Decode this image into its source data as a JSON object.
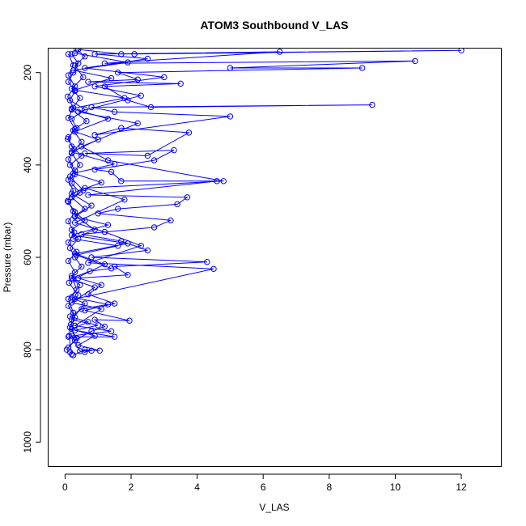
{
  "chart_data": {
    "type": "line",
    "title": "ATOM3 Southbound V_LAS",
    "xlabel": "V_LAS",
    "ylabel": "Pressure (mbar)",
    "xlim": [
      -0.5,
      13.2
    ],
    "ylim": [
      1052,
      148
    ],
    "y_reversed": true,
    "x_ticks": [
      0,
      2,
      4,
      6,
      8,
      10,
      12
    ],
    "y_ticks": [
      200,
      400,
      600,
      800,
      1000
    ],
    "grid": false,
    "legend": "none",
    "color": "#0000ff",
    "marker": "open-circle",
    "series": [
      {
        "values": [
          {
            "x": 0.15,
            "y": 805
          },
          {
            "x": 0.2,
            "y": 810
          },
          {
            "x": 0.12,
            "y": 770
          },
          {
            "x": 0.18,
            "y": 745
          },
          {
            "x": 0.25,
            "y": 720
          },
          {
            "x": 0.1,
            "y": 690
          },
          {
            "x": 0.35,
            "y": 670
          },
          {
            "x": 0.2,
            "y": 640
          },
          {
            "x": 0.5,
            "y": 620
          },
          {
            "x": 0.3,
            "y": 600
          },
          {
            "x": 0.15,
            "y": 580
          },
          {
            "x": 0.4,
            "y": 560
          },
          {
            "x": 0.2,
            "y": 540
          },
          {
            "x": 0.6,
            "y": 520
          },
          {
            "x": 0.25,
            "y": 500
          },
          {
            "x": 0.1,
            "y": 480
          },
          {
            "x": 0.45,
            "y": 460
          },
          {
            "x": 0.2,
            "y": 440
          },
          {
            "x": 0.3,
            "y": 420
          },
          {
            "x": 0.15,
            "y": 400
          },
          {
            "x": 0.5,
            "y": 380
          },
          {
            "x": 0.2,
            "y": 360
          },
          {
            "x": 0.1,
            "y": 340
          },
          {
            "x": 0.35,
            "y": 320
          },
          {
            "x": 0.2,
            "y": 300
          },
          {
            "x": 0.6,
            "y": 280
          },
          {
            "x": 0.15,
            "y": 260
          },
          {
            "x": 0.3,
            "y": 240
          },
          {
            "x": 0.1,
            "y": 220
          },
          {
            "x": 0.25,
            "y": 200
          },
          {
            "x": 0.4,
            "y": 180
          },
          {
            "x": 0.2,
            "y": 160
          }
        ]
      },
      {
        "values": [
          {
            "x": 0.05,
            "y": 800
          },
          {
            "x": 0.3,
            "y": 780
          },
          {
            "x": 0.8,
            "y": 760
          },
          {
            "x": 1.2,
            "y": 750
          },
          {
            "x": 0.9,
            "y": 735
          },
          {
            "x": 1.95,
            "y": 737
          },
          {
            "x": 0.6,
            "y": 715
          },
          {
            "x": 1.5,
            "y": 700
          },
          {
            "x": 0.7,
            "y": 680
          },
          {
            "x": 1.1,
            "y": 660
          },
          {
            "x": 0.4,
            "y": 645
          },
          {
            "x": 1.9,
            "y": 638
          },
          {
            "x": 1.5,
            "y": 620
          },
          {
            "x": 4.3,
            "y": 610
          },
          {
            "x": 0.8,
            "y": 600
          },
          {
            "x": 2.5,
            "y": 585
          },
          {
            "x": 1.7,
            "y": 565
          },
          {
            "x": 0.5,
            "y": 550
          },
          {
            "x": 2.7,
            "y": 535
          },
          {
            "x": 3.2,
            "y": 520
          },
          {
            "x": 1.0,
            "y": 505
          },
          {
            "x": 1.6,
            "y": 495
          },
          {
            "x": 3.4,
            "y": 485
          },
          {
            "x": 3.7,
            "y": 470
          },
          {
            "x": 0.7,
            "y": 465
          },
          {
            "x": 4.6,
            "y": 435
          },
          {
            "x": 1.7,
            "y": 435
          },
          {
            "x": 1.4,
            "y": 415
          },
          {
            "x": 0.9,
            "y": 410
          },
          {
            "x": 2.7,
            "y": 390
          },
          {
            "x": 3.3,
            "y": 368
          },
          {
            "x": 0.6,
            "y": 375
          },
          {
            "x": 2.5,
            "y": 380
          },
          {
            "x": 3.75,
            "y": 330
          },
          {
            "x": 1.7,
            "y": 320
          },
          {
            "x": 0.9,
            "y": 335
          },
          {
            "x": 5.0,
            "y": 295
          },
          {
            "x": 1.5,
            "y": 285
          },
          {
            "x": 0.8,
            "y": 275
          },
          {
            "x": 9.3,
            "y": 270
          },
          {
            "x": 2.6,
            "y": 275
          },
          {
            "x": 1.9,
            "y": 260
          },
          {
            "x": 1.2,
            "y": 230
          },
          {
            "x": 3.5,
            "y": 224
          },
          {
            "x": 0.7,
            "y": 220
          },
          {
            "x": 2.2,
            "y": 215
          },
          {
            "x": 1.6,
            "y": 200
          },
          {
            "x": 9.0,
            "y": 190
          },
          {
            "x": 5.0,
            "y": 190
          },
          {
            "x": 10.6,
            "y": 175
          },
          {
            "x": 1.2,
            "y": 180
          },
          {
            "x": 6.5,
            "y": 155
          },
          {
            "x": 1.7,
            "y": 160
          },
          {
            "x": 0.4,
            "y": 150
          }
        ]
      },
      {
        "values": [
          {
            "x": 0.1,
            "y": 772
          },
          {
            "x": 1.5,
            "y": 772
          },
          {
            "x": 0.3,
            "y": 758
          },
          {
            "x": 1.0,
            "y": 747
          },
          {
            "x": 0.2,
            "y": 735
          },
          {
            "x": 0.6,
            "y": 700
          },
          {
            "x": 0.3,
            "y": 690
          },
          {
            "x": 4.5,
            "y": 625
          },
          {
            "x": 0.7,
            "y": 612
          },
          {
            "x": 2.3,
            "y": 575
          },
          {
            "x": 1.2,
            "y": 545
          },
          {
            "x": 0.3,
            "y": 525
          },
          {
            "x": 1.8,
            "y": 475
          },
          {
            "x": 0.6,
            "y": 450
          },
          {
            "x": 4.8,
            "y": 435
          },
          {
            "x": 1.3,
            "y": 390
          },
          {
            "x": 0.5,
            "y": 360
          },
          {
            "x": 2.2,
            "y": 310
          },
          {
            "x": 0.4,
            "y": 285
          },
          {
            "x": 2.3,
            "y": 250
          },
          {
            "x": 0.9,
            "y": 230
          },
          {
            "x": 3.0,
            "y": 210
          },
          {
            "x": 0.6,
            "y": 190
          },
          {
            "x": 2.5,
            "y": 170
          },
          {
            "x": 0.9,
            "y": 160
          },
          {
            "x": 12.0,
            "y": 152
          },
          {
            "x": 2.1,
            "y": 160
          }
        ]
      },
      {
        "values": [
          {
            "x": 0.25,
            "y": 812
          },
          {
            "x": 0.6,
            "y": 800
          },
          {
            "x": 1.05,
            "y": 802
          },
          {
            "x": 0.4,
            "y": 790
          },
          {
            "x": 0.9,
            "y": 770
          },
          {
            "x": 0.2,
            "y": 755
          },
          {
            "x": 0.7,
            "y": 740
          },
          {
            "x": 0.15,
            "y": 728
          },
          {
            "x": 0.5,
            "y": 712
          },
          {
            "x": 1.3,
            "y": 702
          },
          {
            "x": 0.2,
            "y": 686
          },
          {
            "x": 0.45,
            "y": 660
          },
          {
            "x": 0.2,
            "y": 645
          },
          {
            "x": 0.75,
            "y": 630
          },
          {
            "x": 1.4,
            "y": 624
          },
          {
            "x": 0.35,
            "y": 595
          },
          {
            "x": 1.6,
            "y": 575
          },
          {
            "x": 0.25,
            "y": 560
          },
          {
            "x": 0.9,
            "y": 540
          },
          {
            "x": 0.3,
            "y": 510
          },
          {
            "x": 0.6,
            "y": 495
          },
          {
            "x": 0.2,
            "y": 470
          },
          {
            "x": 0.55,
            "y": 455
          },
          {
            "x": 0.15,
            "y": 425
          },
          {
            "x": 0.45,
            "y": 400
          },
          {
            "x": 0.2,
            "y": 375
          },
          {
            "x": 0.5,
            "y": 350
          },
          {
            "x": 0.25,
            "y": 325
          },
          {
            "x": 0.65,
            "y": 305
          },
          {
            "x": 0.2,
            "y": 280
          },
          {
            "x": 0.45,
            "y": 255
          },
          {
            "x": 0.2,
            "y": 235
          },
          {
            "x": 0.55,
            "y": 210
          },
          {
            "x": 0.3,
            "y": 185
          },
          {
            "x": 0.6,
            "y": 165
          },
          {
            "x": 0.35,
            "y": 150
          }
        ]
      },
      {
        "values": [
          {
            "x": 0.1,
            "y": 795
          },
          {
            "x": 0.35,
            "y": 775
          },
          {
            "x": 0.15,
            "y": 752
          },
          {
            "x": 0.3,
            "y": 730
          },
          {
            "x": 0.1,
            "y": 705
          },
          {
            "x": 0.4,
            "y": 682
          },
          {
            "x": 0.12,
            "y": 655
          },
          {
            "x": 0.3,
            "y": 632
          },
          {
            "x": 0.1,
            "y": 608
          },
          {
            "x": 0.35,
            "y": 588
          },
          {
            "x": 0.1,
            "y": 568
          },
          {
            "x": 0.28,
            "y": 546
          },
          {
            "x": 0.1,
            "y": 522
          },
          {
            "x": 0.3,
            "y": 502
          },
          {
            "x": 0.08,
            "y": 478
          },
          {
            "x": 0.25,
            "y": 456
          },
          {
            "x": 0.1,
            "y": 432
          },
          {
            "x": 0.3,
            "y": 412
          },
          {
            "x": 0.1,
            "y": 388
          },
          {
            "x": 0.28,
            "y": 366
          },
          {
            "x": 0.08,
            "y": 344
          },
          {
            "x": 0.3,
            "y": 322
          },
          {
            "x": 0.1,
            "y": 298
          },
          {
            "x": 0.25,
            "y": 276
          },
          {
            "x": 0.08,
            "y": 252
          },
          {
            "x": 0.3,
            "y": 230
          },
          {
            "x": 0.1,
            "y": 206
          },
          {
            "x": 0.25,
            "y": 184
          },
          {
            "x": 0.1,
            "y": 160
          }
        ]
      },
      {
        "values": [
          {
            "x": 0.6,
            "y": 805
          },
          {
            "x": 0.8,
            "y": 802
          },
          {
            "x": 0.45,
            "y": 803
          },
          {
            "x": 0.2,
            "y": 770
          },
          {
            "x": 1.4,
            "y": 760
          },
          {
            "x": 0.3,
            "y": 748
          },
          {
            "x": 1.1,
            "y": 712
          },
          {
            "x": 0.2,
            "y": 698
          },
          {
            "x": 0.9,
            "y": 665
          },
          {
            "x": 0.25,
            "y": 648
          },
          {
            "x": 1.2,
            "y": 615
          },
          {
            "x": 0.3,
            "y": 592
          },
          {
            "x": 1.9,
            "y": 570
          },
          {
            "x": 0.2,
            "y": 552
          },
          {
            "x": 1.3,
            "y": 530
          },
          {
            "x": 0.3,
            "y": 512
          },
          {
            "x": 0.8,
            "y": 488
          },
          {
            "x": 0.2,
            "y": 462
          },
          {
            "x": 1.1,
            "y": 438
          },
          {
            "x": 0.25,
            "y": 418
          },
          {
            "x": 1.5,
            "y": 398
          },
          {
            "x": 0.2,
            "y": 372
          },
          {
            "x": 1.0,
            "y": 345
          },
          {
            "x": 0.3,
            "y": 328
          },
          {
            "x": 1.3,
            "y": 300
          },
          {
            "x": 0.2,
            "y": 278
          },
          {
            "x": 1.8,
            "y": 255
          },
          {
            "x": 0.3,
            "y": 238
          },
          {
            "x": 1.4,
            "y": 212
          },
          {
            "x": 0.25,
            "y": 195
          },
          {
            "x": 1.9,
            "y": 178
          },
          {
            "x": 0.3,
            "y": 158
          }
        ]
      }
    ]
  }
}
